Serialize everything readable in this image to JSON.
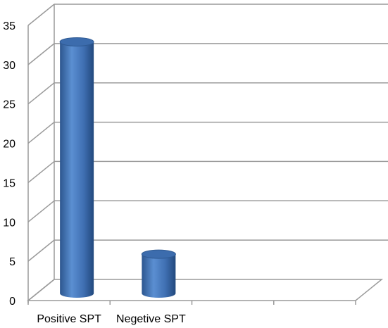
{
  "chart_data": {
    "type": "bar",
    "style": "3d-cylinder",
    "categories": [
      "Positive SPT",
      "Negetive SPT"
    ],
    "values": [
      32,
      5
    ],
    "title": "",
    "xlabel": "",
    "ylabel": "",
    "ylim": [
      0,
      35
    ],
    "yticks": [
      0,
      5,
      10,
      15,
      20,
      25,
      30,
      35
    ],
    "grid": true,
    "legend": "none",
    "bar_color": "#4A7EC4",
    "grid_color": "#9A9A9A"
  }
}
